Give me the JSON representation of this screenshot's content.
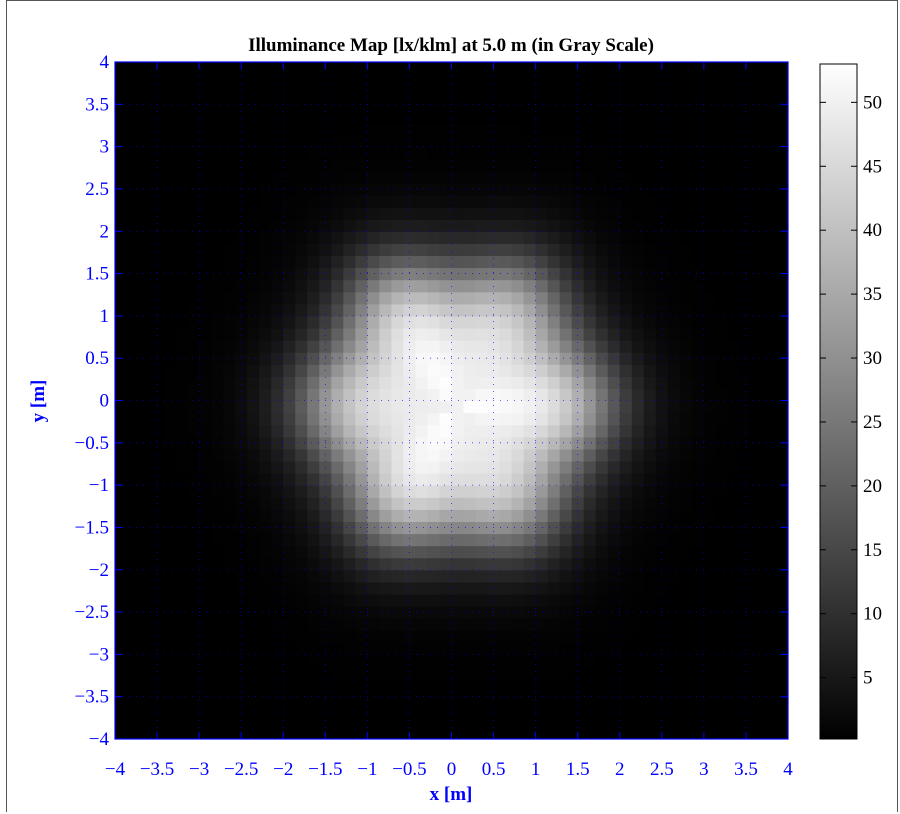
{
  "chart_data": {
    "type": "heatmap",
    "title": "Illuminance Map [lx/klm] at 5.0 m (in Gray Scale)",
    "xlabel": "x [m]",
    "ylabel": "y [m]",
    "xlim": [
      -4,
      4
    ],
    "ylim": [
      -4,
      4
    ],
    "x_ticks": [
      -4,
      -3.5,
      -3,
      -2.5,
      -2,
      -1.5,
      -1,
      -0.5,
      0,
      0.5,
      1,
      1.5,
      2,
      2.5,
      3,
      3.5,
      4
    ],
    "y_ticks": [
      -4,
      -3.5,
      -3,
      -2.5,
      -2,
      -1.5,
      -1,
      -0.5,
      0,
      0.5,
      1,
      1.5,
      2,
      2.5,
      3,
      3.5,
      4
    ],
    "x_tick_labels": [
      "−4",
      "−3.5",
      "−3",
      "−2.5",
      "−2",
      "−1.5",
      "−1",
      "−0.5",
      "0",
      "0.5",
      "1",
      "1.5",
      "2",
      "2.5",
      "3",
      "3.5",
      "4"
    ],
    "y_tick_labels": [
      "−4",
      "−3.5",
      "−3",
      "−2.5",
      "−2",
      "−1.5",
      "−1",
      "−0.5",
      "0",
      "0.5",
      "1",
      "1.5",
      "2",
      "2.5",
      "3",
      "3.5",
      "4"
    ],
    "colormap": "gray",
    "color_range": [
      0.2,
      53
    ],
    "colorbar_ticks": [
      5,
      10,
      15,
      20,
      25,
      30,
      35,
      40,
      45,
      50
    ],
    "colorbar_tick_labels": [
      "5",
      "10",
      "15",
      "20",
      "25",
      "30",
      "35",
      "40",
      "45",
      "50"
    ],
    "grid": "dotted",
    "peak_value": 53,
    "distribution": {
      "center": [
        0.05,
        -0.05
      ],
      "plateau_radius_m": 1.6,
      "falloff_width_m": 0.9,
      "edge_value": 0.2
    }
  },
  "colors": {
    "axis": "#0000ff",
    "title": "#000000",
    "background": "#ffffff"
  }
}
